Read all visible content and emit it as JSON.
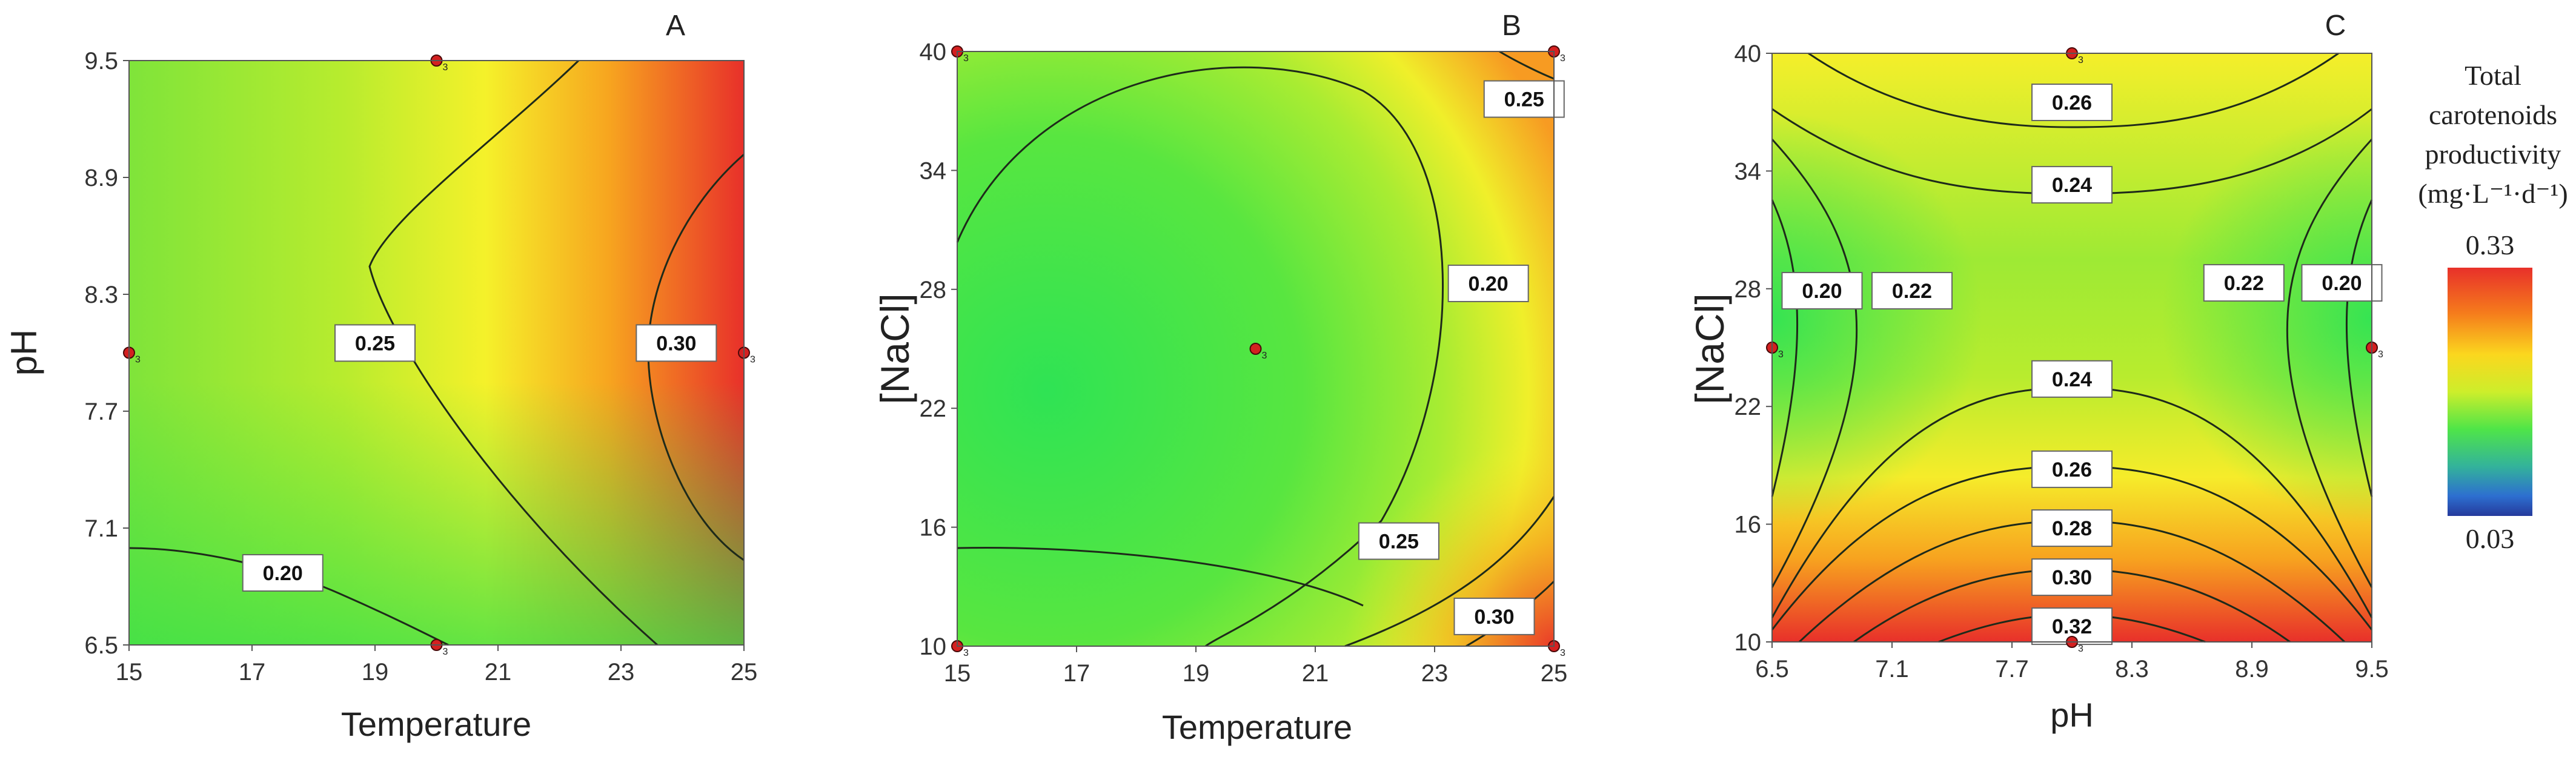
{
  "figure": {
    "legend": {
      "title_lines": [
        "Total",
        "carotenoids",
        "productivity",
        "(mg·L⁻¹·d⁻¹)"
      ],
      "max_label": "0.33",
      "min_label": "0.03",
      "colors": [
        "#e8302a",
        "#f57a1c",
        "#fbd71e",
        "#cdee2b",
        "#4fe548",
        "#33b39a",
        "#2d6fd0",
        "#253a9c"
      ]
    }
  },
  "chart_data": [
    {
      "type": "heatmap",
      "panel_label": "A",
      "xlabel": "Temperature",
      "ylabel": "pH",
      "x_ticks": [
        "15",
        "17",
        "19",
        "21",
        "23",
        "25"
      ],
      "y_ticks": [
        "6.5",
        "7.1",
        "7.7",
        "8.3",
        "8.9",
        "9.5"
      ],
      "xlim": [
        15,
        25
      ],
      "ylim": [
        6.5,
        9.5
      ],
      "contour_labels": [
        {
          "text": "0.25",
          "x": 19.0,
          "y": 8.05
        },
        {
          "text": "0.30",
          "x": 23.9,
          "y": 8.05
        },
        {
          "text": "0.20",
          "x": 17.5,
          "y": 6.87
        }
      ],
      "design_points": [
        {
          "x": 15,
          "y": 8.0,
          "label": "3"
        },
        {
          "x": 20,
          "y": 9.5,
          "label": "3"
        },
        {
          "x": 20,
          "y": 6.5,
          "label": "3"
        },
        {
          "x": 25,
          "y": 8.0,
          "label": "3"
        }
      ]
    },
    {
      "type": "heatmap",
      "panel_label": "B",
      "xlabel": "Temperature",
      "ylabel": "[NaCl]",
      "x_ticks": [
        "15",
        "17",
        "19",
        "21",
        "23",
        "25"
      ],
      "y_ticks": [
        "10",
        "16",
        "22",
        "28",
        "34",
        "40"
      ],
      "xlim": [
        15,
        25
      ],
      "ylim": [
        10,
        40
      ],
      "contour_labels": [
        {
          "text": "0.25",
          "x": 24.5,
          "y": 37.6
        },
        {
          "text": "0.20",
          "x": 23.9,
          "y": 28.3
        },
        {
          "text": "0.25",
          "x": 22.4,
          "y": 15.3
        },
        {
          "text": "0.30",
          "x": 24.0,
          "y": 11.5
        }
      ],
      "design_points": [
        {
          "x": 15,
          "y": 40.5,
          "label": "3"
        },
        {
          "x": 25,
          "y": 40.5,
          "label": "3"
        },
        {
          "x": 20,
          "y": 25,
          "label": "3"
        },
        {
          "x": 15,
          "y": 10,
          "label": "3"
        },
        {
          "x": 25,
          "y": 10,
          "label": "3"
        }
      ]
    },
    {
      "type": "heatmap",
      "panel_label": "C",
      "xlabel": "pH",
      "ylabel": "[NaCl]",
      "x_ticks": [
        "6.5",
        "7.1",
        "7.7",
        "8.3",
        "8.9",
        "9.5"
      ],
      "y_ticks": [
        "10",
        "16",
        "22",
        "28",
        "34",
        "40"
      ],
      "xlim": [
        6.5,
        9.5
      ],
      "ylim": [
        10,
        40
      ],
      "contour_labels": [
        {
          "text": "0.26",
          "x": 8.0,
          "y": 37.5
        },
        {
          "text": "0.24",
          "x": 8.0,
          "y": 33.3
        },
        {
          "text": "0.20",
          "x": 6.75,
          "y": 27.9
        },
        {
          "text": "0.22",
          "x": 7.2,
          "y": 27.9
        },
        {
          "text": "0.22",
          "x": 8.86,
          "y": 28.3
        },
        {
          "text": "0.20",
          "x": 9.35,
          "y": 28.3
        },
        {
          "text": "0.24",
          "x": 8.0,
          "y": 23.4
        },
        {
          "text": "0.26",
          "x": 8.0,
          "y": 18.8
        },
        {
          "text": "0.28",
          "x": 8.0,
          "y": 15.8
        },
        {
          "text": "0.30",
          "x": 8.0,
          "y": 13.3
        },
        {
          "text": "0.32",
          "x": 8.0,
          "y": 10.8
        }
      ],
      "design_points": [
        {
          "x": 8.0,
          "y": 40,
          "label": "3"
        },
        {
          "x": 6.5,
          "y": 25,
          "label": "3"
        },
        {
          "x": 9.5,
          "y": 25,
          "label": "3"
        },
        {
          "x": 8.0,
          "y": 10,
          "label": "3"
        }
      ]
    }
  ]
}
